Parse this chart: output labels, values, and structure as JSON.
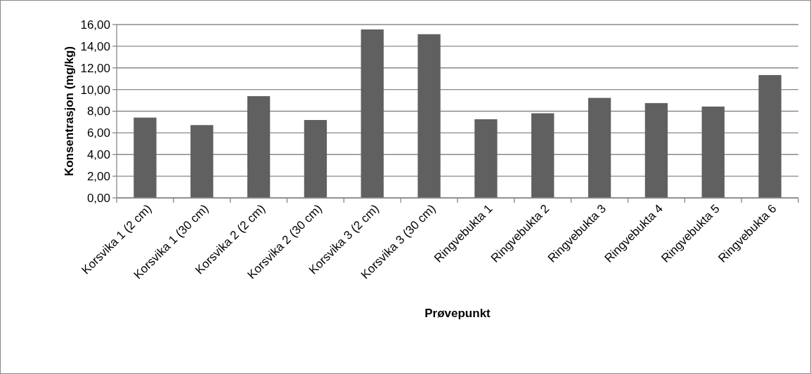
{
  "chart_data": {
    "type": "bar",
    "xlabel": "Prøvepunkt",
    "ylabel": "Konsentrasjon (mg/kg)",
    "categories": [
      "Korsvika 1 (2 cm)",
      "Korsvika 1 (30 cm)",
      "Korsvika 2 (2 cm)",
      "Korsvika 2 (30 cm)",
      "Korsvika 3 (2 cm)",
      "Korsvika 3 (30 cm)",
      "Ringvebukta 1",
      "Ringvebukta 2",
      "Ringvebukta 3",
      "Ringvebukta 4",
      "Ringvebukta 5",
      "Ringvebukta 6"
    ],
    "values": [
      7.41,
      6.72,
      9.39,
      7.19,
      15.55,
      15.11,
      7.26,
      7.81,
      9.23,
      8.75,
      8.43,
      11.34
    ],
    "color": "#606060",
    "ylim": [
      0,
      16
    ],
    "yticks": [
      {
        "value": 0,
        "label": "0,00"
      },
      {
        "value": 2,
        "label": "2,00"
      },
      {
        "value": 4,
        "label": "4,00"
      },
      {
        "value": 6,
        "label": "6,00"
      },
      {
        "value": 8,
        "label": "8,00"
      },
      {
        "value": 10,
        "label": "10,00"
      },
      {
        "value": 12,
        "label": "12,00"
      },
      {
        "value": 14,
        "label": "14,00"
      },
      {
        "value": 16,
        "label": "16,00"
      }
    ],
    "grid": "y"
  }
}
